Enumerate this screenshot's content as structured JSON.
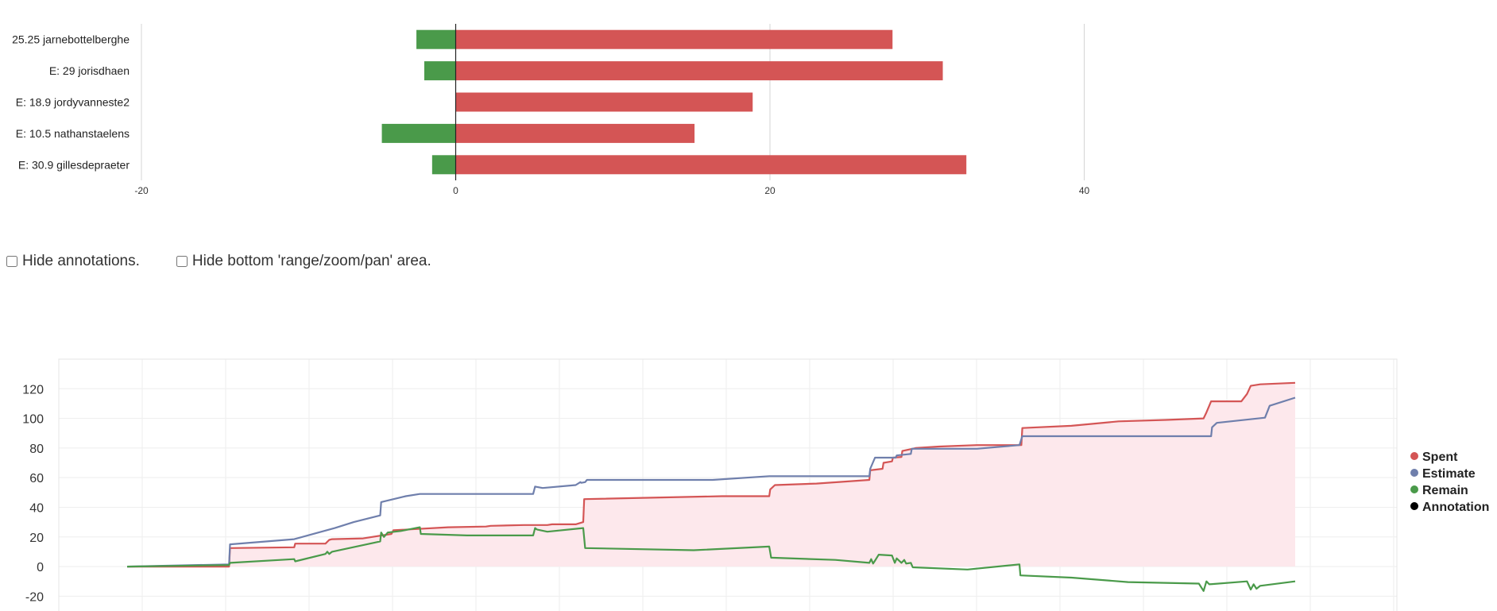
{
  "options": {
    "hide_annotations": {
      "label": "Hide annotations.",
      "checked": false
    },
    "hide_range": {
      "label": "Hide bottom 'range/zoom/pan' area.",
      "checked": false
    }
  },
  "chart_data": [
    {
      "type": "bar",
      "orientation": "horizontal",
      "categories": [
        "25.25 jarnebottelberghe",
        "E: 29 jorisdhaen",
        "E: 18.9 jordyvanneste2",
        "E: 10.5 nathanstaelens",
        "E: 30.9 gillesdepraeter"
      ],
      "series": [
        {
          "color": "#4a9a4a",
          "values": [
            -2.5,
            -2,
            0,
            -4.7,
            -1.5
          ]
        },
        {
          "color": "#d45555",
          "values": [
            27.8,
            31,
            18.9,
            15.2,
            32.5
          ]
        }
      ],
      "xlim": [
        -20,
        60
      ],
      "xticks": [
        -20,
        0,
        20,
        40
      ],
      "grid": true
    },
    {
      "type": "line",
      "ylim": [
        -30,
        140
      ],
      "yticks": [
        -20,
        0,
        20,
        40,
        60,
        80,
        100,
        120
      ],
      "grid": true,
      "legend_position": "right",
      "legend": [
        {
          "name": "Spent",
          "color": "#d45555"
        },
        {
          "name": "Estimate",
          "color": "#6f7fac"
        },
        {
          "name": "Remain",
          "color": "#4a9a4a"
        },
        {
          "name": "Annotation",
          "color": "#000000"
        }
      ],
      "fill_color": "#fde8ec",
      "series": [
        {
          "name": "Spent",
          "color": "#d45555",
          "points": [
            [
              0,
              0
            ],
            [
              6,
              0
            ],
            [
              10.8,
              0
            ],
            [
              10.9,
              12.5
            ],
            [
              17.7,
              13
            ],
            [
              17.8,
              15.5
            ],
            [
              21,
              15.5
            ],
            [
              21.4,
              18
            ],
            [
              21.7,
              18.5
            ],
            [
              25,
              19
            ],
            [
              28,
              22
            ],
            [
              28.2,
              24.5
            ],
            [
              34,
              26.5
            ],
            [
              38,
              27
            ],
            [
              38.5,
              27.5
            ],
            [
              42,
              28
            ],
            [
              44.5,
              28
            ],
            [
              45,
              28.5
            ],
            [
              47.5,
              28.5
            ],
            [
              48.3,
              30
            ],
            [
              48.4,
              45.5
            ],
            [
              63,
              47.5
            ],
            [
              68,
              47.5
            ],
            [
              68.1,
              52
            ],
            [
              68.6,
              55
            ],
            [
              73,
              56
            ],
            [
              78.6,
              58.5
            ],
            [
              78.7,
              65
            ],
            [
              80,
              66
            ],
            [
              80.1,
              70
            ],
            [
              81,
              71
            ],
            [
              81.1,
              73.5
            ],
            [
              82,
              74
            ],
            [
              82.1,
              78
            ],
            [
              83.5,
              80
            ],
            [
              86,
              81
            ],
            [
              90,
              82
            ],
            [
              94.7,
              82
            ],
            [
              94.8,
              93.5
            ],
            [
              100,
              95
            ],
            [
              105,
              98
            ],
            [
              110,
              99
            ],
            [
              114,
              100
            ],
            [
              114.3,
              104
            ],
            [
              114.8,
              111.5
            ],
            [
              118,
              111.5
            ],
            [
              118.6,
              116.5
            ],
            [
              119,
              122
            ],
            [
              120,
              123
            ],
            [
              123.7,
              124
            ]
          ]
        },
        {
          "name": "Estimate",
          "color": "#6f7fac",
          "points": [
            [
              0,
              0
            ],
            [
              10.8,
              1.5
            ],
            [
              10.9,
              15
            ],
            [
              17.7,
              18.5
            ],
            [
              22,
              26
            ],
            [
              24,
              30
            ],
            [
              26.8,
              34.5
            ],
            [
              26.9,
              43.5
            ],
            [
              29.5,
              47.5
            ],
            [
              31,
              49
            ],
            [
              41,
              49
            ],
            [
              43,
              49
            ],
            [
              43.2,
              54
            ],
            [
              44,
              53
            ],
            [
              47.5,
              55
            ],
            [
              48,
              57
            ],
            [
              48.1,
              56.5
            ],
            [
              48.5,
              57
            ],
            [
              48.7,
              58.5
            ],
            [
              53,
              58.5
            ],
            [
              62,
              58.5
            ],
            [
              68,
              61
            ],
            [
              78.6,
              61
            ],
            [
              78.7,
              66
            ],
            [
              79.2,
              73.5
            ],
            [
              81.4,
              73.5
            ],
            [
              81.5,
              75
            ],
            [
              83,
              76
            ],
            [
              83.1,
              79.5
            ],
            [
              86,
              79.5
            ],
            [
              90,
              79.5
            ],
            [
              94.5,
              82
            ],
            [
              94.8,
              88
            ],
            [
              104,
              88
            ],
            [
              114.8,
              88
            ],
            [
              114.9,
              94
            ],
            [
              115.4,
              97
            ],
            [
              120.5,
              100.5
            ],
            [
              121,
              108.5
            ],
            [
              123.7,
              114
            ]
          ]
        },
        {
          "name": "Remain",
          "color": "#4a9a4a",
          "points": [
            [
              0,
              0
            ],
            [
              10.8,
              1
            ],
            [
              10.9,
              2.5
            ],
            [
              17.7,
              5
            ],
            [
              17.8,
              3.5
            ],
            [
              21,
              8.5
            ],
            [
              21.2,
              10
            ],
            [
              21.4,
              8.5
            ],
            [
              21.7,
              10
            ],
            [
              26.8,
              17
            ],
            [
              26.9,
              23
            ],
            [
              27.2,
              20
            ],
            [
              27.6,
              23
            ],
            [
              29,
              24
            ],
            [
              31,
              26.5
            ],
            [
              31.1,
              22
            ],
            [
              36,
              21
            ],
            [
              38,
              21
            ],
            [
              41,
              21
            ],
            [
              43,
              21
            ],
            [
              43.2,
              26
            ],
            [
              43.4,
              25
            ],
            [
              44.5,
              23.5
            ],
            [
              48.3,
              26
            ],
            [
              48.5,
              12.5
            ],
            [
              60,
              11
            ],
            [
              68,
              13.5
            ],
            [
              68.2,
              6
            ],
            [
              75,
              4.5
            ],
            [
              78.6,
              2.5
            ],
            [
              78.8,
              5
            ],
            [
              79,
              2
            ],
            [
              79.2,
              4
            ],
            [
              79.6,
              8
            ],
            [
              81,
              7.5
            ],
            [
              81.3,
              2.5
            ],
            [
              81.5,
              5.5
            ],
            [
              82,
              2.5
            ],
            [
              82.3,
              4.5
            ],
            [
              82.5,
              2
            ],
            [
              83,
              2.5
            ],
            [
              83.2,
              -0.5
            ],
            [
              89,
              -2
            ],
            [
              94.5,
              1.5
            ],
            [
              94.6,
              -6
            ],
            [
              100,
              -7.5
            ],
            [
              106,
              -10.5
            ],
            [
              110,
              -11
            ],
            [
              113.5,
              -11.5
            ],
            [
              114,
              -16.5
            ],
            [
              114.3,
              -10
            ],
            [
              114.6,
              -12
            ],
            [
              118.6,
              -10
            ],
            [
              119,
              -15.5
            ],
            [
              119.3,
              -12
            ],
            [
              119.6,
              -15
            ],
            [
              120,
              -13
            ],
            [
              123.7,
              -10
            ]
          ]
        }
      ]
    }
  ]
}
